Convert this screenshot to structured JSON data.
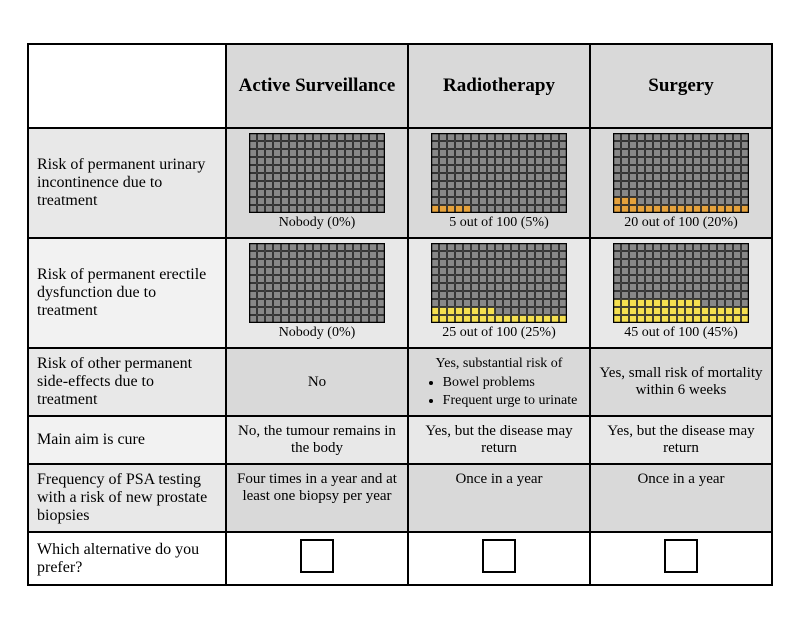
{
  "grid": {
    "cols": 17,
    "rows": 10,
    "cell_size": 8,
    "empty_fill": "#888888",
    "stroke": "#000000"
  },
  "colors": {
    "orange": "#e6a23c",
    "yellow": "#f5e050"
  },
  "columns": [
    "Active Surveillance",
    "Radiotherapy",
    "Surgery"
  ],
  "rows": {
    "r1": {
      "label": "Risk of permanent urinary incontinence due to treatment",
      "cells": [
        {
          "type": "icon",
          "filled": 0,
          "fill_color": "#e6a23c",
          "caption": "Nobody (0%)"
        },
        {
          "type": "icon",
          "filled": 5,
          "fill_color": "#e6a23c",
          "caption": "5 out of 100 (5%)"
        },
        {
          "type": "icon",
          "filled": 20,
          "fill_color": "#e6a23c",
          "caption": "20 out of 100 (20%)"
        }
      ]
    },
    "r2": {
      "label": "Risk of permanent erectile dysfunction due to treatment",
      "cells": [
        {
          "type": "icon",
          "filled": 0,
          "fill_color": "#f5e050",
          "caption": "Nobody (0%)"
        },
        {
          "type": "icon",
          "filled": 25,
          "fill_color": "#f5e050",
          "caption": "25 out of 100 (25%)"
        },
        {
          "type": "icon",
          "filled": 45,
          "fill_color": "#f5e050",
          "caption": "45 out of 100 (45%)"
        }
      ]
    },
    "r3": {
      "label": "Risk of other permanent side-effects due to treatment",
      "cells": [
        {
          "type": "text",
          "text": "No"
        },
        {
          "type": "bullets",
          "lead": "Yes, substantial risk of",
          "items": [
            "Bowel problems",
            "Frequent urge to urinate"
          ]
        },
        {
          "type": "text",
          "text": "Yes, small risk of mortality within 6 weeks"
        }
      ]
    },
    "r4": {
      "label": "Main aim is cure",
      "cells": [
        {
          "type": "text",
          "text": "No, the tumour remains in the body"
        },
        {
          "type": "text",
          "text": "Yes, but the disease may return"
        },
        {
          "type": "text",
          "text": "Yes, but the disease may return"
        }
      ]
    },
    "r5": {
      "label": "Frequency of PSA testing with a risk of new prostate biopsies",
      "cells": [
        {
          "type": "text",
          "text": "Four times in a year and at least one biopsy per year"
        },
        {
          "type": "text",
          "text": "Once in a year"
        },
        {
          "type": "text",
          "text": "Once in a year"
        }
      ]
    },
    "r6": {
      "label": "Which alternative do you prefer?",
      "cells": [
        {
          "type": "checkbox"
        },
        {
          "type": "checkbox"
        },
        {
          "type": "checkbox"
        }
      ]
    }
  }
}
